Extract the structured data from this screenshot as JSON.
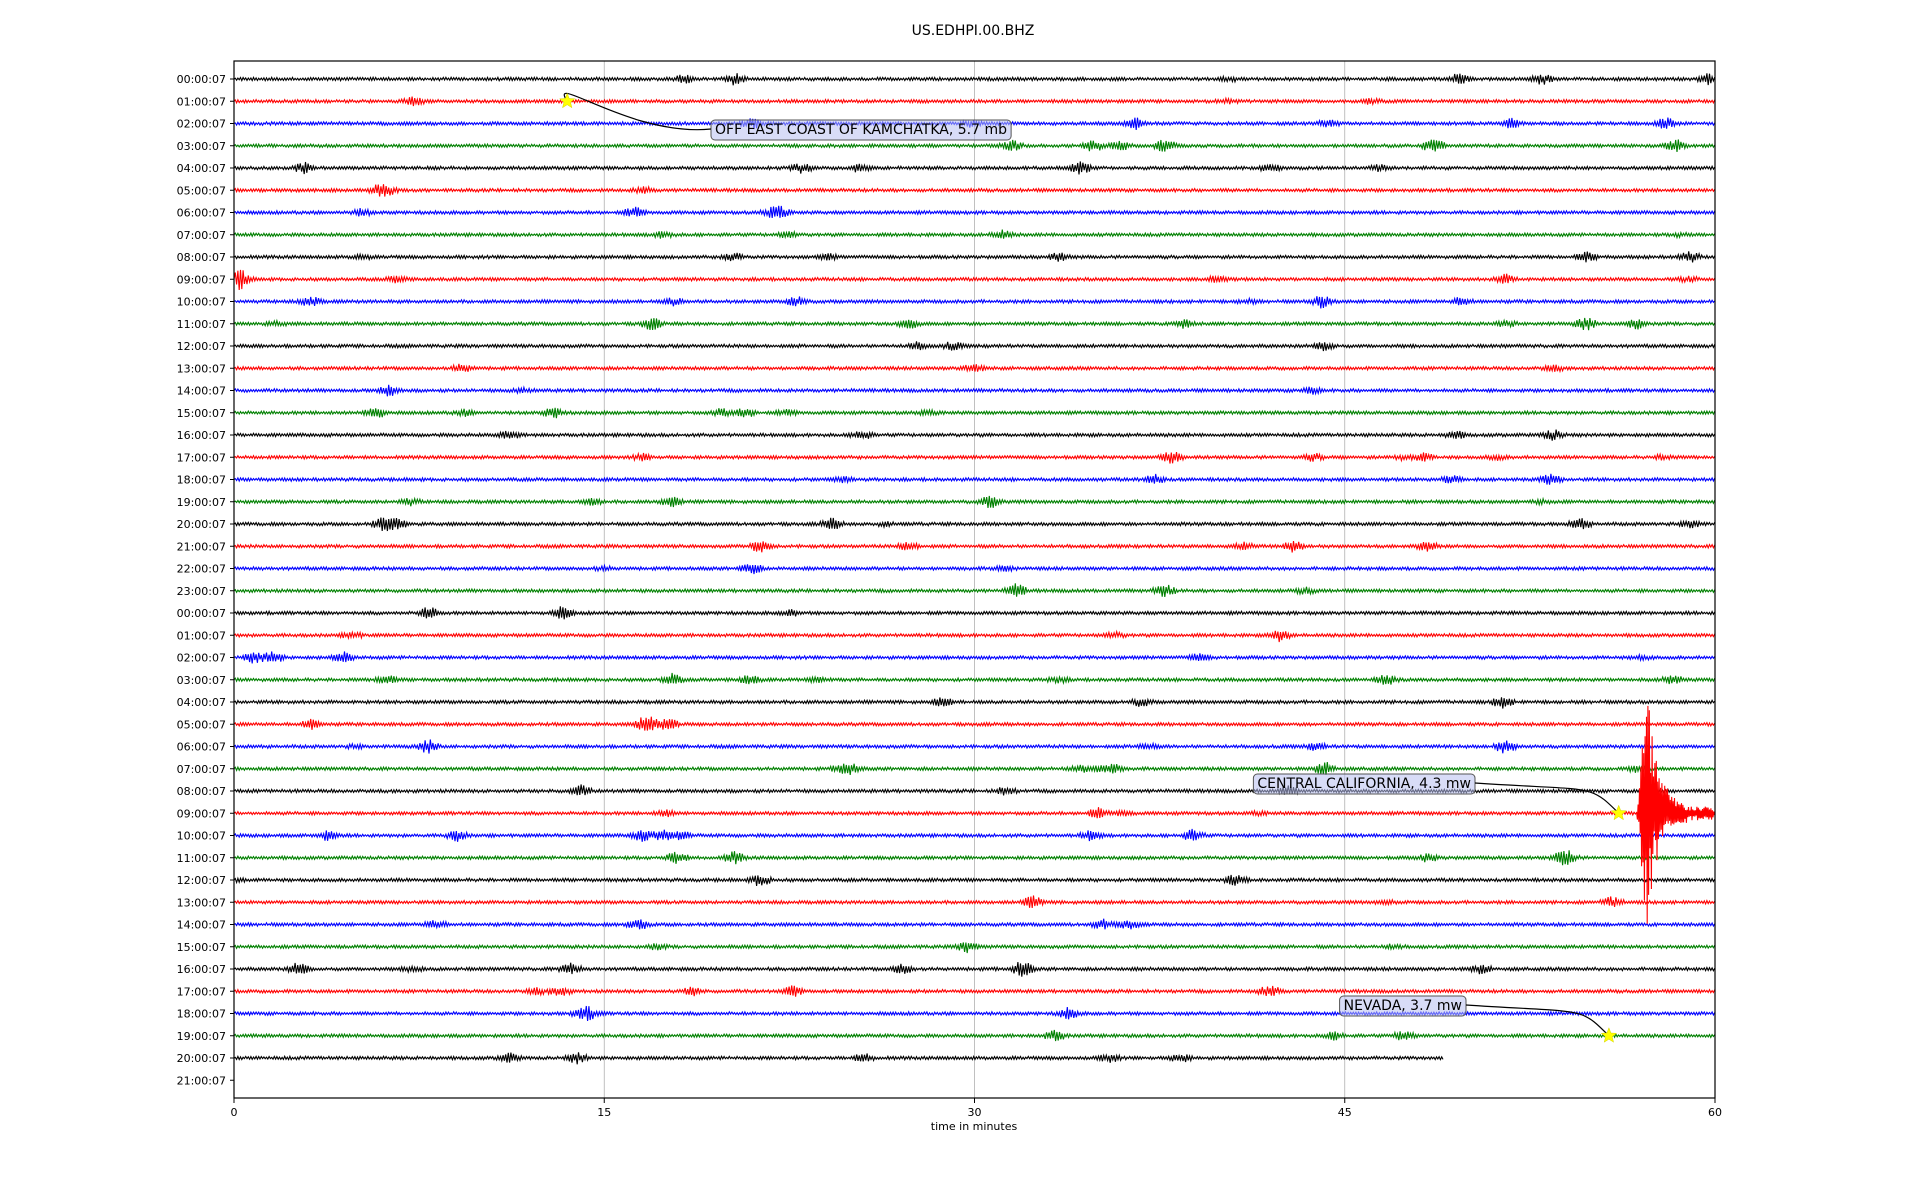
{
  "chart_data": {
    "type": "line",
    "title": "US.EDHPI.00.BHZ",
    "xlabel": "time in minutes",
    "ylabel": "",
    "xlim": [
      0,
      60
    ],
    "x_ticks": [
      0,
      15,
      30,
      45,
      60
    ],
    "grid": "vertical",
    "trace_colors": [
      "#000000",
      "#ff0000",
      "#0000ff",
      "#008000"
    ],
    "row_labels": [
      "00:00:07",
      "01:00:07",
      "02:00:07",
      "03:00:07",
      "04:00:07",
      "05:00:07",
      "06:00:07",
      "07:00:07",
      "08:00:07",
      "09:00:07",
      "10:00:07",
      "11:00:07",
      "12:00:07",
      "13:00:07",
      "14:00:07",
      "15:00:07",
      "16:00:07",
      "17:00:07",
      "18:00:07",
      "19:00:07",
      "20:00:07",
      "21:00:07",
      "22:00:07",
      "23:00:07",
      "00:00:07",
      "01:00:07",
      "02:00:07",
      "03:00:07",
      "04:00:07",
      "05:00:07",
      "06:00:07",
      "07:00:07",
      "08:00:07",
      "09:00:07",
      "10:00:07",
      "11:00:07",
      "12:00:07",
      "13:00:07",
      "14:00:07",
      "15:00:07",
      "16:00:07",
      "17:00:07",
      "18:00:07",
      "19:00:07",
      "20:00:07",
      "21:00:07"
    ],
    "last_trace_end_minute": 49,
    "events": [
      {
        "label": "OFF EAST COAST OF KAMCHATKA, 5.7 mb",
        "row": 1,
        "minute": 13.5
      },
      {
        "label": "CENTRAL CALIFORNIA, 4.3 mw",
        "row": 33,
        "minute": 56.1
      },
      {
        "label": "NEVADA, 3.7 mw",
        "row": 43,
        "minute": 55.7
      }
    ]
  }
}
